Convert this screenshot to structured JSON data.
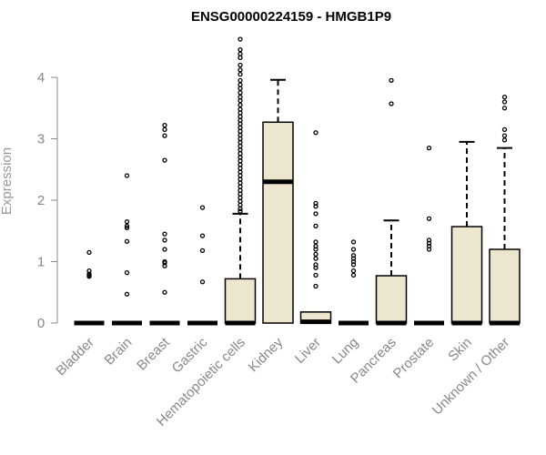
{
  "chart_data": {
    "type": "box",
    "title": "ENSG00000224159 - HMGB1P9",
    "xlabel": "",
    "ylabel": "Expression",
    "ylim": [
      0,
      4.6
    ],
    "yticks": [
      "0",
      "1",
      "2",
      "3",
      "4"
    ],
    "colors": {
      "box_fill": "#ede6cf",
      "box_stroke": "#000000",
      "axis": "#888888"
    },
    "categories": [
      "Bladder",
      "Brain",
      "Breast",
      "Gastric",
      "Hematopoietic cells",
      "Kidney",
      "Liver",
      "Lung",
      "Pancreas",
      "Prostate",
      "Skin",
      "Unknown / Other"
    ],
    "boxes": [
      {
        "category": "Bladder",
        "q1": 0,
        "median": 0,
        "q3": 0,
        "whisker_low": 0,
        "whisker_high": 0,
        "outliers": [
          1.15,
          0.85,
          0.8,
          0.78,
          0.76
        ]
      },
      {
        "category": "Brain",
        "q1": 0,
        "median": 0,
        "q3": 0,
        "whisker_low": 0,
        "whisker_high": 0,
        "outliers": [
          2.4,
          1.65,
          1.58,
          1.55,
          1.33,
          0.82,
          0.47
        ]
      },
      {
        "category": "Breast",
        "q1": 0,
        "median": 0,
        "q3": 0,
        "whisker_low": 0,
        "whisker_high": 0,
        "outliers": [
          3.22,
          3.15,
          3.05,
          2.65,
          1.45,
          1.35,
          1.2,
          1.0,
          0.98,
          0.93,
          0.5
        ]
      },
      {
        "category": "Gastric",
        "q1": 0,
        "median": 0,
        "q3": 0,
        "whisker_low": 0,
        "whisker_high": 0,
        "outliers": [
          1.88,
          1.42,
          1.18,
          0.67
        ]
      },
      {
        "category": "Hematopoietic cells",
        "q1": 0,
        "median": 0,
        "q3": 0.72,
        "whisker_low": 0,
        "whisker_high": 1.78,
        "outliers": [
          4.62,
          4.45,
          4.38,
          4.32,
          4.2,
          4.12,
          4.05,
          3.95,
          3.88,
          3.82,
          3.75,
          3.68,
          3.62,
          3.55,
          3.48,
          3.42,
          3.36,
          3.3,
          3.24,
          3.18,
          3.12,
          3.06,
          3.0,
          2.94,
          2.88,
          2.82,
          2.76,
          2.7,
          2.64,
          2.58,
          2.52,
          2.46,
          2.4,
          2.34,
          2.28,
          2.22,
          2.16,
          2.1,
          2.04,
          1.98,
          1.92,
          1.86,
          1.82
        ]
      },
      {
        "category": "Kidney",
        "q1": 0,
        "median": 2.3,
        "q3": 3.27,
        "whisker_low": 0,
        "whisker_high": 3.96,
        "outliers": []
      },
      {
        "category": "Liver",
        "q1": 0,
        "median": 0.02,
        "q3": 0.18,
        "whisker_low": 0,
        "whisker_high": 0.18,
        "outliers": [
          3.1,
          1.95,
          1.9,
          1.78,
          1.58,
          1.32,
          1.25,
          1.2,
          1.12,
          1.05,
          0.95,
          0.9,
          0.78,
          0.6
        ]
      },
      {
        "category": "Lung",
        "q1": 0,
        "median": 0,
        "q3": 0,
        "whisker_low": 0,
        "whisker_high": 0,
        "outliers": [
          1.32,
          1.2,
          1.1,
          1.05,
          1.0,
          0.95,
          0.85,
          0.78
        ]
      },
      {
        "category": "Pancreas",
        "q1": 0,
        "median": 0,
        "q3": 0.77,
        "whisker_low": 0,
        "whisker_high": 1.67,
        "outliers": [
          3.95,
          3.57
        ]
      },
      {
        "category": "Prostate",
        "q1": 0,
        "median": 0,
        "q3": 0,
        "whisker_low": 0,
        "whisker_high": 0,
        "outliers": [
          2.85,
          1.7,
          1.35,
          1.3,
          1.25,
          1.2
        ]
      },
      {
        "category": "Skin",
        "q1": 0,
        "median": 0,
        "q3": 1.57,
        "whisker_low": 0,
        "whisker_high": 2.95,
        "outliers": []
      },
      {
        "category": "Unknown / Other",
        "q1": 0,
        "median": 0,
        "q3": 1.2,
        "whisker_low": 0,
        "whisker_high": 2.85,
        "outliers": [
          3.68,
          3.6,
          3.5,
          3.15,
          3.05,
          2.98
        ]
      }
    ]
  }
}
